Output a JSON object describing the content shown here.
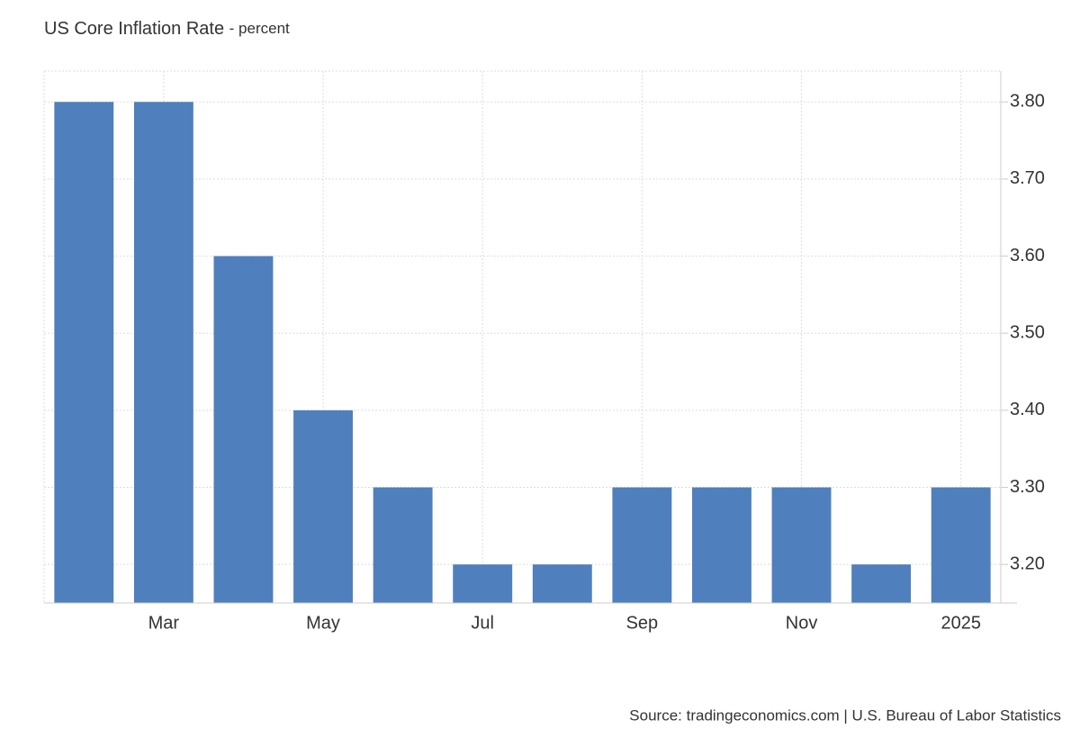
{
  "chart_data": {
    "type": "bar",
    "title": "US Core Inflation Rate",
    "subtitle": "- percent",
    "categories": [
      null,
      "Mar",
      null,
      "May",
      null,
      "Jul",
      null,
      "Sep",
      null,
      "Nov",
      null,
      "2025"
    ],
    "values": [
      3.8,
      3.8,
      3.6,
      3.4,
      3.3,
      3.2,
      3.2,
      3.3,
      3.3,
      3.3,
      3.2,
      3.3
    ],
    "color": "#4f80bd",
    "ylim": [
      3.15,
      3.84
    ],
    "yticks": [
      {
        "value": 3.2,
        "label": "3.20"
      },
      {
        "value": 3.3,
        "label": "3.30"
      },
      {
        "value": 3.4,
        "label": "3.40"
      },
      {
        "value": 3.5,
        "label": "3.50"
      },
      {
        "value": 3.6,
        "label": "3.60"
      },
      {
        "value": 3.7,
        "label": "3.70"
      },
      {
        "value": 3.8,
        "label": "3.80"
      }
    ],
    "grid": true,
    "source": "Source: tradingeconomics.com | U.S. Bureau of Labor Statistics"
  }
}
